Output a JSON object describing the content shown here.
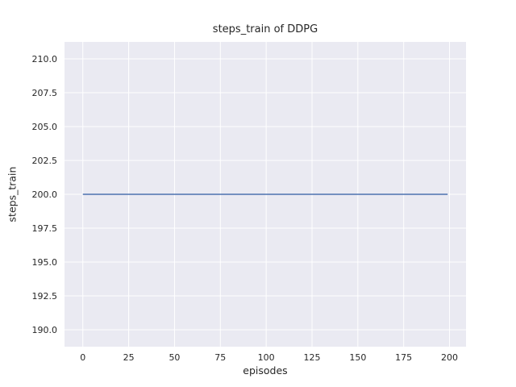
{
  "figure": {
    "title": "steps_train of DDPG",
    "xlabel": "episodes",
    "ylabel": "steps_train"
  },
  "chart_data": {
    "type": "line",
    "title": "steps_train of DDPG",
    "xlabel": "episodes",
    "ylabel": "steps_train",
    "x_ticks": [
      0,
      25,
      50,
      75,
      100,
      125,
      150,
      175,
      200
    ],
    "y_ticks": [
      190.0,
      192.5,
      195.0,
      197.5,
      200.0,
      202.5,
      205.0,
      207.5,
      210.0
    ],
    "xlim": [
      -10,
      209
    ],
    "ylim": [
      188.75,
      211.25
    ],
    "grid": true,
    "legend_position": "none",
    "plot_bg": "#eaeaf2",
    "grid_color": "#ffffff",
    "line_color": "#4c72b0",
    "series": [
      {
        "name": "steps_train",
        "x": [
          0,
          199
        ],
        "y": [
          200,
          200
        ]
      }
    ]
  }
}
